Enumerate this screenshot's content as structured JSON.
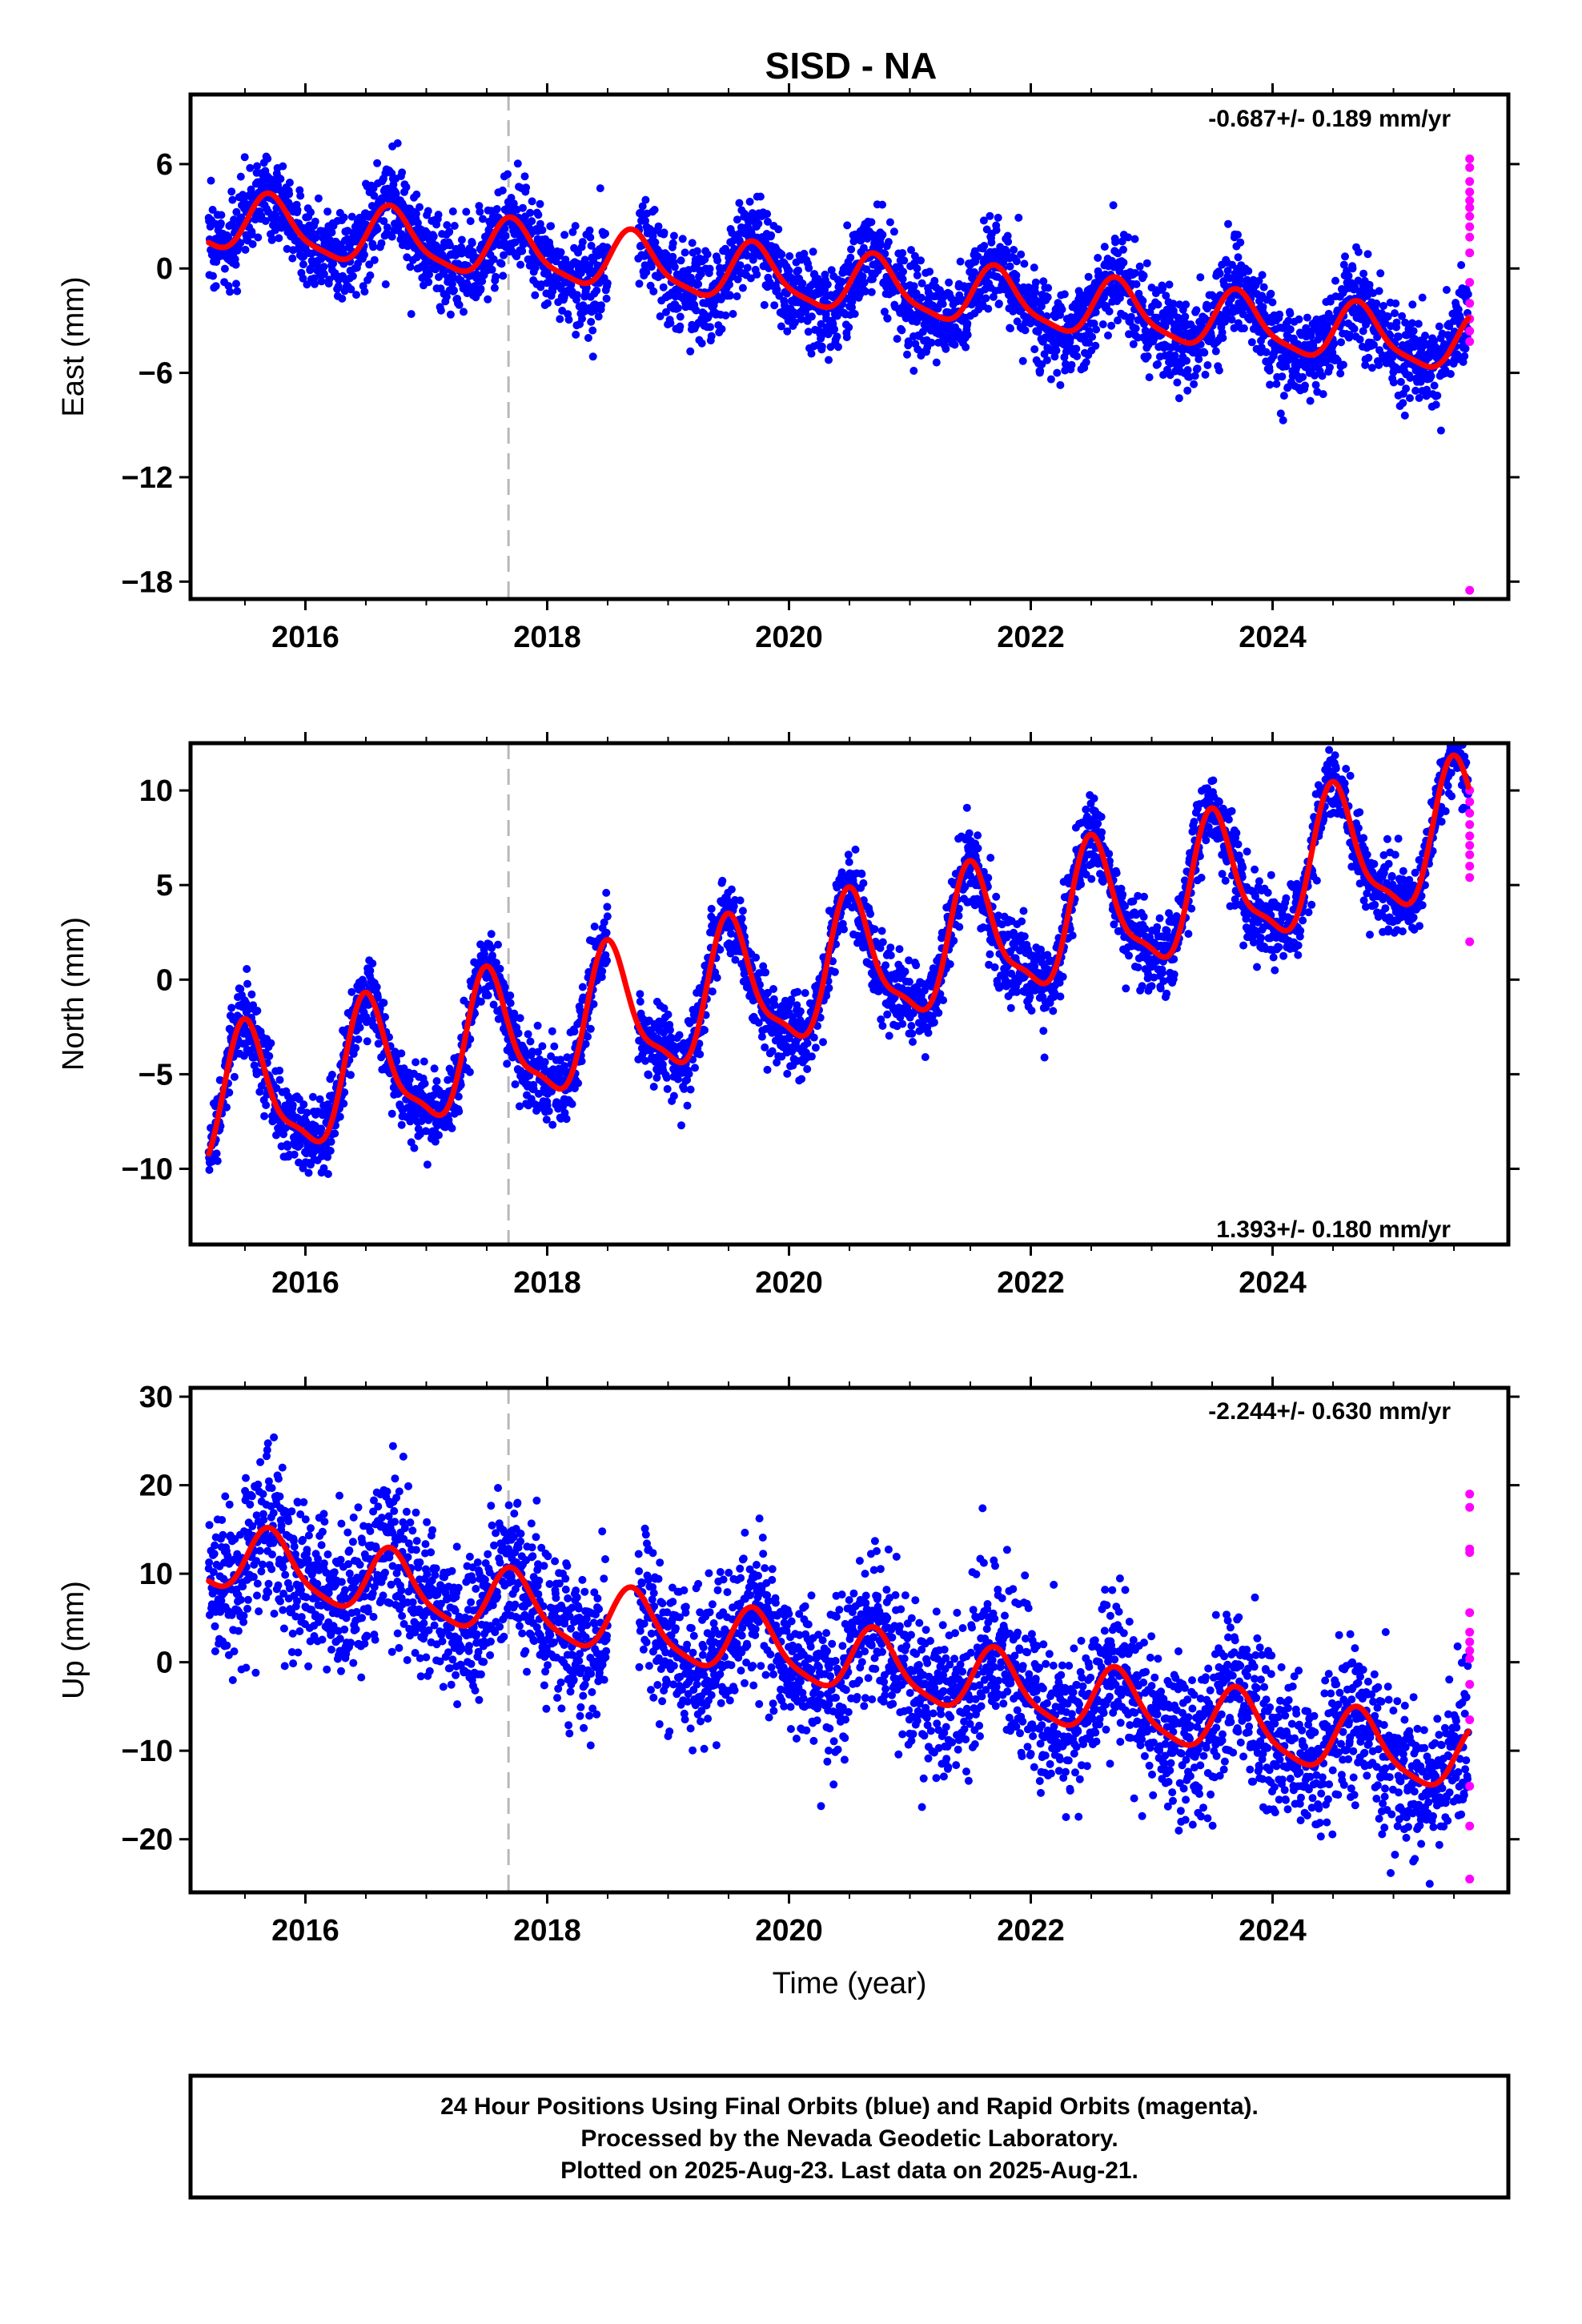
{
  "title": "SISD - NA",
  "colors": {
    "final_orbits": "#0000ff",
    "rapid_orbits": "#ff00ff",
    "model_fit": "#ff0000",
    "event_line": "#b8b8b8"
  },
  "chart_data": [
    {
      "type": "scatter",
      "title": "SISD - NA",
      "ylabel": "East (mm)",
      "xlabel": "",
      "xlim": [
        2015.05,
        2025.95
      ],
      "ylim": [
        -19,
        10
      ],
      "xticks": [
        2016,
        2018,
        2020,
        2022,
        2024
      ],
      "xtick_labels": [
        "2016",
        "2018",
        "2020",
        "2022",
        "2024"
      ],
      "yticks": [
        6,
        0,
        -6,
        -12,
        -18
      ],
      "ytick_labels": [
        "6",
        "0",
        "−6",
        "−12",
        "−18"
      ],
      "rate_label": "-0.687+/- 0.189 mm/yr",
      "rate_label_position": "top-right",
      "event_line_year": 2017.68,
      "model": {
        "start_value": 2.7,
        "rate": -0.687,
        "annual_amplitude": 1.6,
        "annual_peak": 0.72,
        "semiannual_amplitude": 0.4,
        "noise_sd": 1.3,
        "data_gap": [
          2018.5,
          2018.75
        ]
      },
      "rapid_orbit_points": [
        6.3,
        5.8,
        5.0,
        4.4,
        3.9,
        3.5,
        3.0,
        2.4,
        1.8,
        0.9,
        -0.8,
        -2.0,
        -2.9,
        -3.6,
        -4.2,
        -18.5
      ],
      "series": [
        {
          "name": "Final Orbits",
          "color": "#0000ff",
          "style": "points"
        },
        {
          "name": "Rapid Orbits",
          "color": "#ff00ff",
          "style": "points"
        },
        {
          "name": "",
          "color": "#ff0000",
          "style": "line"
        }
      ]
    },
    {
      "type": "scatter",
      "ylabel": "North (mm)",
      "xlabel": "",
      "xlim": [
        2015.05,
        2025.95
      ],
      "ylim": [
        -14,
        12.5
      ],
      "xticks": [
        2016,
        2018,
        2020,
        2022,
        2024
      ],
      "xtick_labels": [
        "2016",
        "2018",
        "2020",
        "2022",
        "2024"
      ],
      "yticks": [
        10,
        5,
        0,
        -5,
        -10
      ],
      "ytick_labels": [
        "10",
        "5",
        "0",
        "−5",
        "−10"
      ],
      "rate_label": "1.393+/- 0.180 mm/yr",
      "rate_label_position": "bottom-right",
      "event_line_year": 2017.68,
      "model": {
        "start_value": -6.8,
        "rate": 1.393,
        "annual_amplitude": 3.4,
        "annual_peak": 0.52,
        "semiannual_amplitude": 1.0,
        "noise_sd": 1.0,
        "data_gap": [
          2018.5,
          2018.75
        ]
      },
      "rapid_orbit_points": [
        10.0,
        9.4,
        8.8,
        8.2,
        7.6,
        7.1,
        6.6,
        6.0,
        5.4,
        2.0
      ],
      "series": [
        {
          "name": "Final Orbits",
          "color": "#0000ff",
          "style": "points"
        },
        {
          "name": "Rapid Orbits",
          "color": "#ff00ff",
          "style": "points"
        },
        {
          "name": "",
          "color": "#ff0000",
          "style": "line"
        }
      ]
    },
    {
      "type": "scatter",
      "ylabel": "Up (mm)",
      "xlabel": "Time (year)",
      "xlim": [
        2015.05,
        2025.95
      ],
      "ylim": [
        -26,
        31
      ],
      "xticks": [
        2016,
        2018,
        2020,
        2022,
        2024
      ],
      "xtick_labels": [
        "2016",
        "2018",
        "2020",
        "2022",
        "2024"
      ],
      "yticks": [
        30,
        20,
        10,
        0,
        -10,
        -20
      ],
      "ytick_labels": [
        "30",
        "20",
        "10",
        "0",
        "−10",
        "−20"
      ],
      "rate_label": "-2.244+/- 0.630 mm/yr",
      "rate_label_position": "top-right",
      "event_line_year": 2017.68,
      "model": {
        "start_value": 12.0,
        "rate": -2.244,
        "annual_amplitude": 3.6,
        "annual_peak": 0.72,
        "semiannual_amplitude": 0.8,
        "noise_sd": 4.3,
        "data_gap": [
          2018.5,
          2018.75
        ]
      },
      "rapid_orbit_points": [
        19.0,
        17.5,
        12.8,
        12.4,
        5.6,
        3.4,
        2.3,
        1.3,
        0.4,
        -2.5,
        -6.5,
        -14.0,
        -18.5,
        -24.5
      ],
      "series": [
        {
          "name": "Final Orbits",
          "color": "#0000ff",
          "style": "points"
        },
        {
          "name": "Rapid Orbits",
          "color": "#ff00ff",
          "style": "points"
        },
        {
          "name": "",
          "color": "#ff0000",
          "style": "line"
        }
      ]
    }
  ],
  "caption": {
    "line1": "24 Hour Positions Using Final Orbits (blue) and Rapid Orbits (magenta).",
    "line2": "Processed by the Nevada Geodetic Laboratory.",
    "line3": "Plotted on 2025-Aug-23. Last data on 2025-Aug-21."
  }
}
